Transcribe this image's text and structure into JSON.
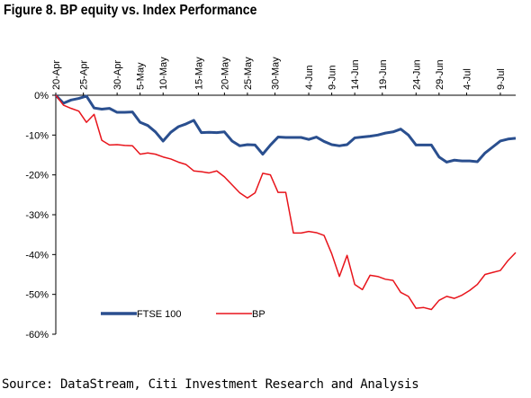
{
  "title": "Figure 8. BP equity vs. Index Performance",
  "source": "Source: DataStream, Citi Investment Research and Analysis",
  "chart_data": {
    "type": "line",
    "title": "Figure 8. BP equity vs. Index Performance",
    "xlabel": "",
    "ylabel": "",
    "x": [
      "20-Apr",
      "21-Apr",
      "22-Apr",
      "23-Apr",
      "26-Apr",
      "27-Apr",
      "28-Apr",
      "29-Apr",
      "30-Apr",
      "3-May",
      "4-May",
      "5-May",
      "6-May",
      "7-May",
      "10-May",
      "11-May",
      "12-May",
      "13-May",
      "14-May",
      "17-May",
      "18-May",
      "19-May",
      "20-May",
      "21-May",
      "24-May",
      "25-May",
      "26-May",
      "27-May",
      "28-May",
      "31-May",
      "1-Jun",
      "2-Jun",
      "3-Jun",
      "4-Jun",
      "7-Jun",
      "8-Jun",
      "9-Jun",
      "10-Jun",
      "11-Jun",
      "14-Jun",
      "15-Jun",
      "16-Jun",
      "17-Jun",
      "18-Jun",
      "21-Jun",
      "22-Jun",
      "23-Jun",
      "24-Jun",
      "25-Jun",
      "28-Jun",
      "29-Jun",
      "30-Jun",
      "1-Jul",
      "2-Jul",
      "5-Jul",
      "6-Jul",
      "7-Jul",
      "8-Jul",
      "9-Jul",
      "12-Jul",
      "13-Jul"
    ],
    "x_tick_labels": [
      "20-Apr",
      "25-Apr",
      "30-Apr",
      "5-May",
      "10-May",
      "15-May",
      "20-May",
      "25-May",
      "30-May",
      "4-Jun",
      "9-Jun",
      "14-Jun",
      "19-Jun",
      "24-Jun",
      "29-Jun",
      "4-Jul",
      "9-Jul"
    ],
    "y_tick_labels": [
      "0%",
      "-10%",
      "-20%",
      "-30%",
      "-40%",
      "-50%",
      "-60%"
    ],
    "ylim": [
      -60,
      0
    ],
    "grid": false,
    "legend_position": "bottom-left",
    "series": [
      {
        "name": "FTSE 100",
        "color": "#2a4f8f",
        "values": [
          0,
          -2.0,
          -1.2,
          -0.8,
          -0.2,
          -3.2,
          -3.5,
          -3.3,
          -4.3,
          -4.3,
          -4.2,
          -6.8,
          -7.6,
          -9.2,
          -11.5,
          -9.3,
          -7.9,
          -7.2,
          -6.3,
          -9.4,
          -9.3,
          -9.4,
          -9.2,
          -11.5,
          -12.7,
          -12.4,
          -12.5,
          -14.8,
          -12.5,
          -10.5,
          -10.6,
          -10.6,
          -10.6,
          -11.1,
          -10.5,
          -11.6,
          -12.4,
          -12.7,
          -12.4,
          -10.7,
          -10.5,
          -10.3,
          -10.0,
          -9.5,
          -9.2,
          -8.5,
          -10.0,
          -12.5,
          -12.5,
          -12.5,
          -15.5,
          -16.8,
          -16.3,
          -16.5,
          -16.5,
          -16.7,
          -14.5,
          -13.0,
          -11.5,
          -11.0,
          -10.8
        ]
      },
      {
        "name": "BP",
        "color": "#e8141b",
        "values": [
          0,
          -2.5,
          -3.3,
          -4.0,
          -6.8,
          -4.8,
          -11.3,
          -12.5,
          -12.4,
          -12.6,
          -12.7,
          -14.8,
          -14.5,
          -14.8,
          -15.5,
          -16.0,
          -16.8,
          -17.4,
          -19.0,
          -19.2,
          -19.5,
          -19.0,
          -20.5,
          -22.5,
          -24.5,
          -25.8,
          -24.5,
          -19.6,
          -20.0,
          -24.4,
          -24.4,
          -34.6,
          -34.6,
          -34.2,
          -34.5,
          -35.2,
          -39.8,
          -45.5,
          -40.2,
          -47.5,
          -48.8,
          -45.2,
          -45.5,
          -46.2,
          -46.5,
          -49.5,
          -50.5,
          -53.5,
          -53.3,
          -53.8,
          -51.5,
          -50.5,
          -51.0,
          -50.2,
          -49.0,
          -47.5,
          -45.0,
          -44.5,
          -44.0,
          -41.5,
          -39.5
        ]
      }
    ]
  }
}
